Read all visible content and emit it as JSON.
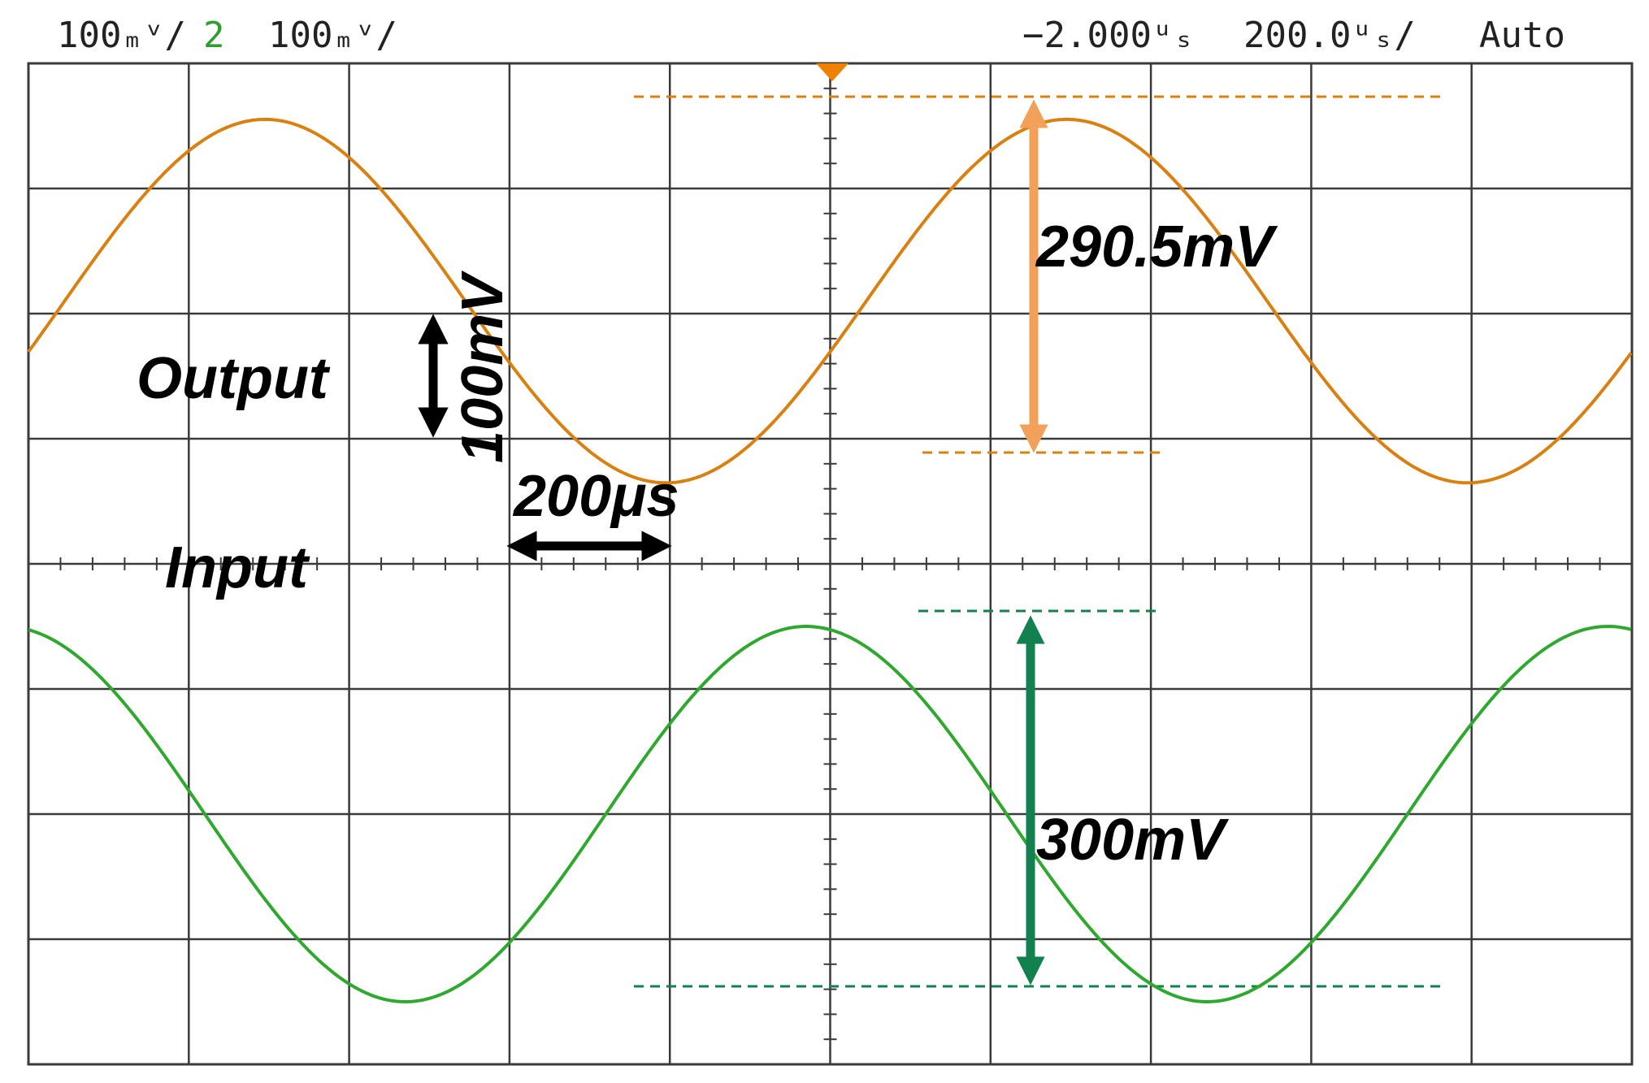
{
  "status_bar": {
    "ch1_scale": "100ₘᵛ/",
    "ch2_number": "2",
    "ch2_scale": "100ₘᵛ/",
    "time_offset": "−2.000ᵘₛ",
    "time_scale": "200.0ᵘₛ/",
    "trigger_mode": "Auto"
  },
  "annotations": {
    "output_label": "Output",
    "input_label": "Input",
    "volt_div_label": "100mV",
    "time_div_label": "200μs",
    "output_amplitude": "290.5mV",
    "input_amplitude": "300mV"
  },
  "colors": {
    "output_trace": "#d98010",
    "output_arrow": "#f2a05a",
    "input_trace": "#2ea82e",
    "input_arrow": "#138050",
    "grid": "#3a3a3a",
    "trigger_marker": "#f08000"
  },
  "chart_data": {
    "type": "line",
    "x": {
      "label": "time",
      "unit": "μs",
      "per_division": 200,
      "divisions": 10
    },
    "y": {
      "unit": "mV",
      "per_division": 100,
      "divisions": 8
    },
    "grid": true,
    "series": [
      {
        "name": "Output",
        "period_us": 1000,
        "peak_to_peak_mV": 290.5,
        "offset_div": 2.1,
        "peak_at_us": 295,
        "color": "#d98010"
      },
      {
        "name": "Input",
        "period_us": 1000,
        "peak_to_peak_mV": 300,
        "offset_div": -2.0,
        "peak_at_us": -1030,
        "color": "#2ea82e"
      }
    ],
    "measurements": [
      {
        "series": "Output",
        "quantity": "peak-to-peak",
        "value_mV": 290.5
      },
      {
        "series": "Input",
        "quantity": "peak-to-peak",
        "value_mV": 300
      }
    ]
  }
}
